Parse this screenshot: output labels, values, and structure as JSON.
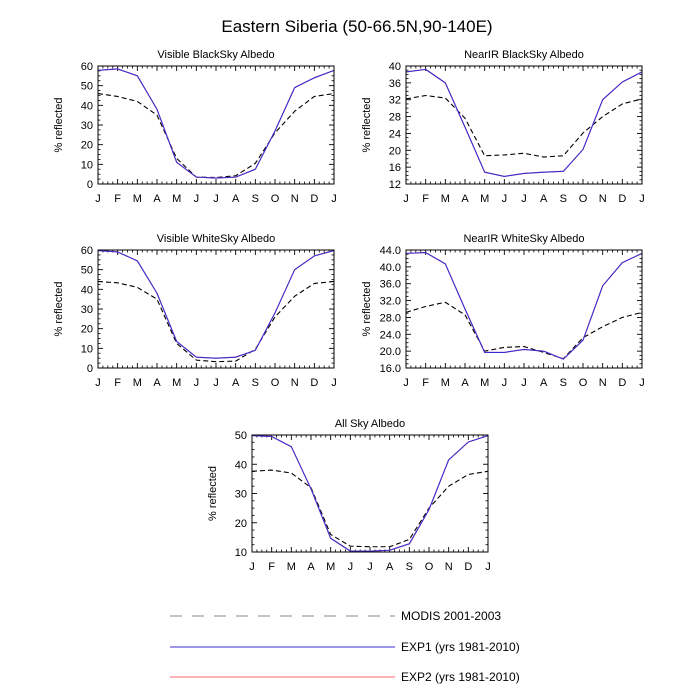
{
  "figure": {
    "title": "Eastern Siberia (50-66.5N,90-140E)"
  },
  "colors": {
    "modis": "#000000",
    "exp1": "#3a2bd0",
    "exp2": "#ff6670",
    "frame": "#000000"
  },
  "chart_data": [
    {
      "id": "vis-bsa",
      "type": "line",
      "title": "Visible BlackSky Albedo",
      "ylabel": "% reflected",
      "xlabel": "",
      "categories": [
        "J",
        "F",
        "M",
        "A",
        "M",
        "J",
        "J",
        "A",
        "S",
        "O",
        "N",
        "D",
        "J"
      ],
      "ylim": [
        0,
        60
      ],
      "yticks": [
        0,
        10,
        20,
        30,
        40,
        50,
        60
      ],
      "ytick_labels": [
        "0",
        "10",
        "20",
        "30",
        "40",
        "50",
        "60"
      ],
      "series": [
        {
          "name": "MODIS 2001-2003",
          "style": "dashed",
          "color": "#000000",
          "values": [
            46,
            44.5,
            42,
            35,
            13,
            3.5,
            3.3,
            4.2,
            10.5,
            26,
            37,
            44.5,
            46
          ]
        },
        {
          "name": "EXP2 (yrs 1981-2010)",
          "style": "solid",
          "color": "#ff6670",
          "values": [
            57.8,
            58.5,
            55,
            38,
            11,
            3.5,
            3,
            3.5,
            7.5,
            27,
            49,
            54,
            57.8
          ]
        },
        {
          "name": "EXP1 (yrs 1981-2010)",
          "style": "solid",
          "color": "#3a2bd0",
          "values": [
            57.8,
            58.5,
            55,
            38,
            11,
            3.5,
            3,
            3.5,
            7.5,
            27,
            49,
            54,
            57.8
          ]
        }
      ]
    },
    {
      "id": "nir-bsa",
      "type": "line",
      "title": "NearIR BlackSky Albedo",
      "ylabel": "% reflected",
      "xlabel": "",
      "categories": [
        "J",
        "F",
        "M",
        "A",
        "M",
        "J",
        "J",
        "A",
        "S",
        "O",
        "N",
        "D",
        "J"
      ],
      "ylim": [
        12,
        40
      ],
      "yticks": [
        12,
        16,
        20,
        24,
        28,
        32,
        36,
        40
      ],
      "ytick_labels": [
        "12",
        "16",
        "20",
        "24",
        "28",
        "32",
        "36",
        "40"
      ],
      "series": [
        {
          "name": "MODIS 2001-2003",
          "style": "dashed",
          "color": "#000000",
          "values": [
            32.2,
            33,
            32.4,
            27.6,
            18.7,
            18.9,
            19.3,
            18.4,
            18.7,
            24.1,
            28,
            31,
            32.2
          ]
        },
        {
          "name": "EXP2 (yrs 1981-2010)",
          "style": "solid",
          "color": "#ff6670",
          "values": [
            38.6,
            39.2,
            36,
            25.5,
            14.8,
            13.8,
            14.5,
            14.8,
            15,
            20.2,
            32,
            36.2,
            38.6
          ]
        },
        {
          "name": "EXP1 (yrs 1981-2010)",
          "style": "solid",
          "color": "#3a2bd0",
          "values": [
            38.6,
            39.2,
            36,
            25.5,
            14.8,
            13.8,
            14.5,
            14.8,
            15,
            20.2,
            32,
            36.2,
            38.6
          ]
        }
      ]
    },
    {
      "id": "vis-wsa",
      "type": "line",
      "title": "Visible WhiteSky Albedo",
      "ylabel": "% reflected",
      "xlabel": "",
      "categories": [
        "J",
        "F",
        "M",
        "A",
        "M",
        "J",
        "J",
        "A",
        "S",
        "O",
        "N",
        "D",
        "J"
      ],
      "ylim": [
        0,
        60
      ],
      "yticks": [
        0,
        10,
        20,
        30,
        40,
        50,
        60
      ],
      "ytick_labels": [
        "0",
        "10",
        "20",
        "30",
        "40",
        "50",
        "60"
      ],
      "series": [
        {
          "name": "MODIS 2001-2003",
          "style": "dashed",
          "color": "#000000",
          "values": [
            44,
            43.3,
            41,
            35,
            12.5,
            4,
            3.2,
            3.5,
            9.5,
            26,
            36.5,
            43,
            44
          ]
        },
        {
          "name": "EXP2 (yrs 1981-2010)",
          "style": "solid",
          "color": "#ff6670",
          "values": [
            59.7,
            59,
            54.5,
            38,
            13.5,
            5.5,
            5,
            5.5,
            9,
            28,
            50,
            57,
            59.7
          ]
        },
        {
          "name": "EXP1 (yrs 1981-2010)",
          "style": "solid",
          "color": "#3a2bd0",
          "values": [
            59.7,
            59,
            54.5,
            38,
            13.5,
            5.5,
            5,
            5.5,
            9,
            28,
            50,
            57,
            59.7
          ]
        }
      ]
    },
    {
      "id": "nir-wsa",
      "type": "line",
      "title": "NearIR WhiteSky Albedo",
      "ylabel": "% reflected",
      "xlabel": "",
      "categories": [
        "J",
        "F",
        "M",
        "A",
        "M",
        "J",
        "J",
        "A",
        "S",
        "O",
        "N",
        "D",
        "J"
      ],
      "ylim": [
        16,
        44
      ],
      "yticks": [
        16,
        20,
        24,
        28,
        32,
        36,
        40,
        44
      ],
      "ytick_labels": [
        "16.0",
        "20.0",
        "24.0",
        "28.0",
        "32.0",
        "36.0",
        "40.0",
        "44.0"
      ],
      "series": [
        {
          "name": "MODIS 2001-2003",
          "style": "dashed",
          "color": "#000000",
          "values": [
            29.2,
            30.6,
            31.6,
            28.6,
            20,
            20.9,
            21.1,
            19.7,
            18.2,
            23.2,
            25.8,
            28,
            29.2
          ]
        },
        {
          "name": "EXP2 (yrs 1981-2010)",
          "style": "solid",
          "color": "#ff6670",
          "values": [
            43.2,
            43.4,
            40.7,
            30,
            19.7,
            19.7,
            20.4,
            20,
            18.1,
            22.6,
            35.5,
            41,
            43.2
          ]
        },
        {
          "name": "EXP1 (yrs 1981-2010)",
          "style": "solid",
          "color": "#3a2bd0",
          "values": [
            43.2,
            43.4,
            40.7,
            30,
            19.7,
            19.7,
            20.4,
            20,
            18.1,
            22.6,
            35.5,
            41,
            43.2
          ]
        }
      ]
    },
    {
      "id": "all-sky",
      "type": "line",
      "title": "All Sky Albedo",
      "ylabel": "% reflected",
      "xlabel": "",
      "categories": [
        "J",
        "F",
        "M",
        "A",
        "M",
        "J",
        "J",
        "A",
        "S",
        "O",
        "N",
        "D",
        "J"
      ],
      "ylim": [
        10,
        50
      ],
      "yticks": [
        10,
        20,
        30,
        40,
        50
      ],
      "ytick_labels": [
        "10",
        "20",
        "30",
        "40",
        "50"
      ],
      "series": [
        {
          "name": "MODIS 2001-2003",
          "style": "dashed",
          "color": "#000000",
          "values": [
            37.6,
            38,
            37,
            32,
            16,
            12,
            11.8,
            11.8,
            14.3,
            25,
            32.5,
            36.5,
            37.6
          ]
        },
        {
          "name": "EXP2 (yrs 1981-2010)",
          "style": "solid",
          "color": "#ff6670",
          "values": [
            49.8,
            49.5,
            46,
            31.6,
            14.7,
            10.3,
            10.3,
            10.6,
            12.8,
            24.5,
            41.5,
            47.6,
            49.8
          ]
        },
        {
          "name": "EXP1 (yrs 1981-2010)",
          "style": "solid",
          "color": "#3a2bd0",
          "values": [
            49.8,
            49.5,
            46,
            31.6,
            14.7,
            10.3,
            10.3,
            10.6,
            12.8,
            24.5,
            41.5,
            47.6,
            49.8
          ]
        }
      ]
    }
  ],
  "legend": {
    "items": [
      {
        "label": "MODIS 2001-2003",
        "style": "dashed",
        "color": "#888888"
      },
      {
        "label": "EXP1 (yrs 1981-2010)",
        "style": "solid",
        "color": "#3a2bd0"
      },
      {
        "label": "EXP2 (yrs 1981-2010)",
        "style": "solid",
        "color": "#ff6670"
      }
    ]
  }
}
